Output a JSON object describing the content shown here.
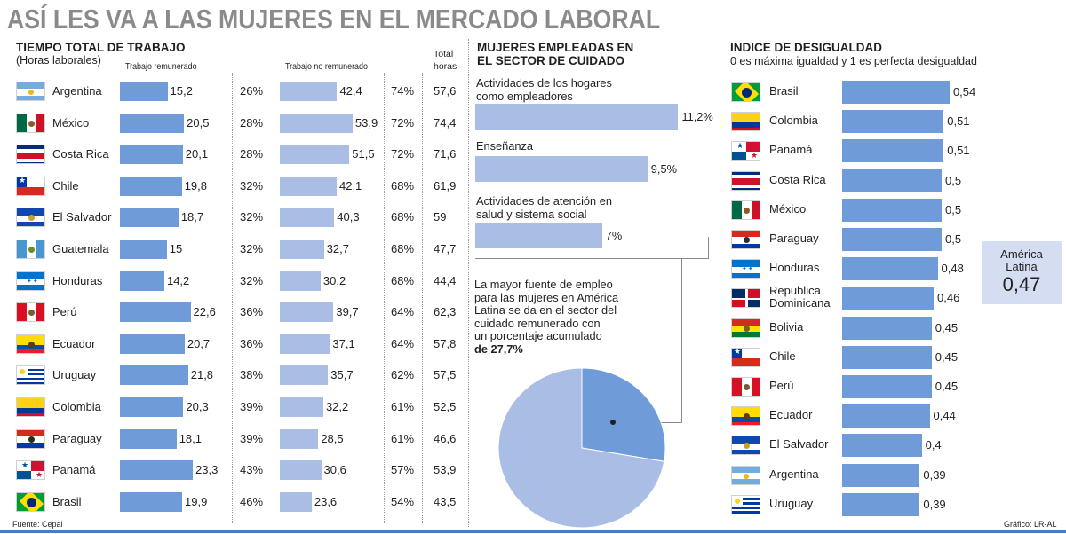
{
  "title": "ASÍ LES VA A LAS MUJERES EN EL MERCADO LABORAL",
  "section1": {
    "title": "TIEMPO TOTAL DE TRABAJO",
    "subtitle": "(Horas laborales)",
    "col_paid": "Trabajo remunerado",
    "col_unpaid": "Trabajo no remunerado",
    "col_total_1": "Total",
    "col_total_2": "horas"
  },
  "section2": {
    "title_1": "MUJERES EMPLEADAS EN",
    "title_2": "EL SECTOR DE CUIDADO",
    "text_1": "La mayor fuente de empleo",
    "text_2": "para las mujeres en América",
    "text_3": "Latina se da en el sector del",
    "text_4": "cuidado remunerado con",
    "text_5": "un porcentaje acumulado",
    "text_6": "de 27,7%"
  },
  "section3": {
    "title": "INDICE DE DESIGUALDAD",
    "subtitle": "0 es máxima igualdad y 1 es perfecta desigualdad",
    "box_1": "América",
    "box_2": "Latina",
    "box_value": "0,47"
  },
  "footer": {
    "source": "Fuente: Cepal",
    "credit": "Gráfico: LR-AL"
  },
  "colors": {
    "dark_bar": "#6f9bd8",
    "light_bar": "#aabee5",
    "title_gray": "#8a8a8a",
    "bottom_rule": "#4a7bc4"
  },
  "chart_data": [
    {
      "type": "bar",
      "title": "TIEMPO TOTAL DE TRABAJO",
      "subtitle": "(Horas laborales)",
      "categories": [
        "Argentina",
        "México",
        "Costa Rica",
        "Chile",
        "El Salvador",
        "Guatemala",
        "Honduras",
        "Perú",
        "Ecuador",
        "Uruguay",
        "Colombia",
        "Paraguay",
        "Panamá",
        "Brasil"
      ],
      "series": [
        {
          "name": "Trabajo remunerado",
          "values": [
            15.2,
            20.5,
            20.1,
            19.8,
            18.7,
            15,
            14.2,
            22.6,
            20.7,
            21.8,
            20.3,
            18.1,
            23.3,
            19.9
          ],
          "labels": [
            "15,2",
            "20,5",
            "20,1",
            "19,8",
            "18,7",
            "15",
            "14,2",
            "22,6",
            "20,7",
            "21,8",
            "20,3",
            "18,1",
            "23,3",
            "19,9"
          ],
          "share": [
            "26%",
            "28%",
            "28%",
            "32%",
            "32%",
            "32%",
            "32%",
            "36%",
            "36%",
            "38%",
            "39%",
            "39%",
            "43%",
            "46%"
          ]
        },
        {
          "name": "Trabajo no remunerado",
          "values": [
            42.4,
            53.9,
            51.5,
            42.1,
            40.3,
            32.7,
            30.2,
            39.7,
            37.1,
            35.7,
            32.2,
            28.5,
            30.6,
            23.6
          ],
          "labels": [
            "42,4",
            "53,9",
            "51,5",
            "42,1",
            "40,3",
            "32,7",
            "30,2",
            "39,7",
            "37,1",
            "35,7",
            "32,2",
            "28,5",
            "30,6",
            "23,6"
          ],
          "share": [
            "74%",
            "72%",
            "72%",
            "68%",
            "68%",
            "68%",
            "68%",
            "64%",
            "64%",
            "62%",
            "61%",
            "61%",
            "57%",
            "54%"
          ]
        }
      ],
      "totals": [
        "57,6",
        "74,4",
        "71,6",
        "61,9",
        "59",
        "47,7",
        "44,4",
        "62,3",
        "57,8",
        "57,5",
        "52,5",
        "46,6",
        "53,9",
        "43,5"
      ]
    },
    {
      "type": "bar",
      "title": "MUJERES EMPLEADAS EN EL SECTOR DE CUIDADO",
      "categories": [
        "Actividades de los hogares como empleadores",
        "Enseñanza",
        "Actividades de atención en salud y sistema social"
      ],
      "category_lines": [
        [
          "Actividades de los hogares",
          "como empleadores"
        ],
        [
          "Enseñanza"
        ],
        [
          "Actividades de atención en",
          "salud y sistema social"
        ]
      ],
      "values": [
        11.2,
        9.5,
        7
      ],
      "labels": [
        "11,2%",
        "9,5%",
        "7%"
      ]
    },
    {
      "type": "pie",
      "values": [
        27.7,
        72.3
      ],
      "highlight": 27.7
    },
    {
      "type": "bar",
      "title": "INDICE DE DESIGUALDAD",
      "subtitle": "0 es máxima igualdad y 1 es perfecta desigualdad",
      "categories": [
        "Brasil",
        "Colombia",
        "Panamá",
        "Costa Rica",
        "México",
        "Paraguay",
        "Honduras",
        "Republica Dominicana",
        "Bolivia",
        "Chile",
        "Perú",
        "Ecuador",
        "El Salvador",
        "Argentina",
        "Uruguay"
      ],
      "category_lines": [
        [
          "Brasil"
        ],
        [
          "Colombia"
        ],
        [
          "Panamá"
        ],
        [
          "Costa Rica"
        ],
        [
          "México"
        ],
        [
          "Paraguay"
        ],
        [
          "Honduras"
        ],
        [
          "Republica",
          "Dominicana"
        ],
        [
          "Bolivia"
        ],
        [
          "Chile"
        ],
        [
          "Perú"
        ],
        [
          "Ecuador"
        ],
        [
          "El Salvador"
        ],
        [
          "Argentina"
        ],
        [
          "Uruguay"
        ]
      ],
      "values": [
        0.54,
        0.51,
        0.51,
        0.5,
        0.5,
        0.5,
        0.48,
        0.46,
        0.45,
        0.45,
        0.45,
        0.44,
        0.4,
        0.39,
        0.39
      ],
      "labels": [
        "0,54",
        "0,51",
        "0,51",
        "0,5",
        "0,5",
        "0,5",
        "0,48",
        "0,46",
        "0,45",
        "0,45",
        "0,45",
        "0,44",
        "0,4",
        "0,39",
        "0,39"
      ],
      "reference": {
        "value": 0.47
      }
    }
  ]
}
